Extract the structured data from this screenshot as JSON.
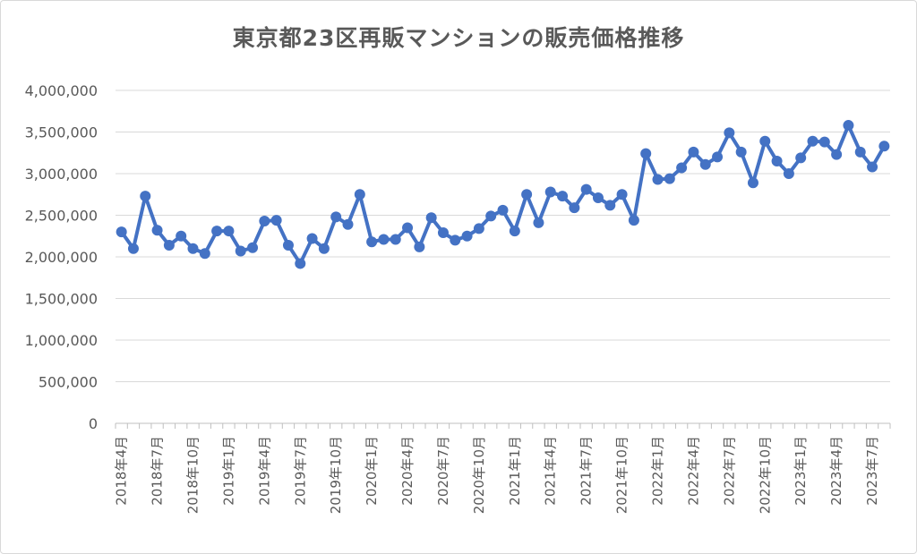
{
  "chart_data": {
    "type": "line",
    "title": "東京都23区再販マンションの販売価格推移",
    "xlabel": "",
    "ylabel": "",
    "ylim": [
      0,
      4000000
    ],
    "y_ticks": [
      0,
      500000,
      1000000,
      1500000,
      2000000,
      2500000,
      3000000,
      3500000,
      4000000
    ],
    "y_tick_labels": [
      "0",
      "500,000",
      "1,000,000",
      "1,500,000",
      "2,000,000",
      "2,500,000",
      "3,000,000",
      "3,500,000",
      "4,000,000"
    ],
    "grid": true,
    "line_color": "#4472c4",
    "categories": [
      "2018年4月",
      "2018年5月",
      "2018年6月",
      "2018年7月",
      "2018年8月",
      "2018年9月",
      "2018年10月",
      "2018年11月",
      "2018年12月",
      "2019年1月",
      "2019年2月",
      "2019年3月",
      "2019年4月",
      "2019年5月",
      "2019年6月",
      "2019年7月",
      "2019年8月",
      "2019年9月",
      "2019年10月",
      "2019年11月",
      "2019年12月",
      "2020年1月",
      "2020年2月",
      "2020年3月",
      "2020年4月",
      "2020年5月",
      "2020年6月",
      "2020年7月",
      "2020年8月",
      "2020年9月",
      "2020年10月",
      "2020年11月",
      "2020年12月",
      "2021年1月",
      "2021年2月",
      "2021年3月",
      "2021年4月",
      "2021年5月",
      "2021年6月",
      "2021年7月",
      "2021年8月",
      "2021年9月",
      "2021年10月",
      "2021年11月",
      "2021年12月",
      "2022年1月",
      "2022年2月",
      "2022年3月",
      "2022年4月",
      "2022年5月",
      "2022年6月",
      "2022年7月",
      "2022年8月",
      "2022年9月",
      "2022年10月",
      "2022年11月",
      "2022年12月",
      "2023年1月",
      "2023年2月",
      "2023年3月",
      "2023年4月",
      "2023年5月",
      "2023年6月",
      "2023年7月",
      "2023年8月"
    ],
    "tick_labels": [
      "2018年4月",
      "2018年7月",
      "2018年10月",
      "2019年1月",
      "2019年4月",
      "2019年7月",
      "2019年10月",
      "2020年1月",
      "2020年4月",
      "2020年7月",
      "2020年10月",
      "2021年1月",
      "2021年4月",
      "2021年7月",
      "2021年10月",
      "2022年1月",
      "2022年4月",
      "2022年7月",
      "2022年10月",
      "2023年1月",
      "2023年4月",
      "2023年7月"
    ],
    "series": [
      {
        "name": "販売価格",
        "values": [
          2300000,
          2100000,
          2730000,
          2320000,
          2140000,
          2250000,
          2100000,
          2040000,
          2310000,
          2310000,
          2070000,
          2110000,
          2430000,
          2440000,
          2140000,
          1920000,
          2220000,
          2100000,
          2480000,
          2390000,
          2750000,
          2180000,
          2210000,
          2210000,
          2350000,
          2120000,
          2470000,
          2290000,
          2200000,
          2250000,
          2340000,
          2490000,
          2560000,
          2310000,
          2750000,
          2410000,
          2780000,
          2730000,
          2590000,
          2810000,
          2710000,
          2620000,
          2750000,
          2440000,
          3240000,
          2930000,
          2940000,
          3070000,
          3260000,
          3110000,
          3200000,
          3490000,
          3260000,
          2890000,
          3390000,
          3150000,
          3000000,
          3190000,
          3390000,
          3380000,
          3230000,
          3580000,
          3260000,
          3080000,
          3330000
        ]
      }
    ]
  }
}
